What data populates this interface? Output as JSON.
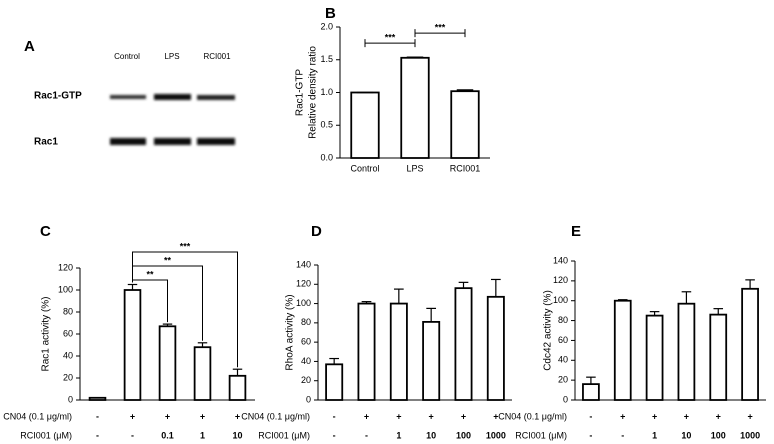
{
  "blot": {
    "label": "A",
    "lanes": [
      "Control",
      "LPS",
      "RCI001"
    ],
    "rows": [
      "Rac1-GTP",
      "Rac1"
    ]
  },
  "chart_data": [
    {
      "type": "bar",
      "label": "B",
      "ylabel": [
        "Rac1-GTP",
        "Relative density ratio"
      ],
      "categories": [
        "Control",
        "LPS",
        "RCI001"
      ],
      "values": [
        1.0,
        1.53,
        1.02
      ],
      "errors": [
        0,
        0.01,
        0.02
      ],
      "color": "#000000",
      "ylim": [
        0,
        2.0
      ],
      "yticks": [
        {
          "value": 0,
          "label": "0.0"
        },
        {
          "value": 0.5,
          "label": "0.5"
        },
        {
          "value": 1.0,
          "label": "1.0"
        },
        {
          "value": 1.5,
          "label": "1.5"
        },
        {
          "value": 2.0,
          "label": "2.0"
        }
      ],
      "bracket_style": "cap",
      "annotations": [
        {
          "from": 0,
          "to": 1,
          "text": "***"
        },
        {
          "from": 1,
          "to": 2,
          "text": "***"
        }
      ]
    },
    {
      "type": "bar",
      "label": "C",
      "ylabel": [
        "Rac1 activity (%)"
      ],
      "values": [
        2,
        100,
        67,
        48,
        22
      ],
      "errors": [
        0,
        5,
        2,
        4,
        6
      ],
      "color": "#000000",
      "ylim": [
        0,
        120
      ],
      "yticks": [
        0,
        20,
        40,
        60,
        80,
        100,
        120
      ],
      "condition_rows": [
        {
          "name": "CN04 (0.1 μg/ml)",
          "cells": [
            "-",
            "+",
            "+",
            "+",
            "+"
          ]
        },
        {
          "name": "RCI001 (μM)",
          "cells": [
            "-",
            "-",
            "0.1",
            "1",
            "10"
          ]
        }
      ],
      "bracket_style": "drop",
      "annotations": [
        {
          "from": 1,
          "to": 2,
          "text": "**"
        },
        {
          "from": 1,
          "to": 3,
          "text": "**"
        },
        {
          "from": 1,
          "to": 4,
          "text": "***"
        }
      ]
    },
    {
      "type": "bar",
      "label": "D",
      "ylabel": [
        "RhoA activity (%)"
      ],
      "values": [
        37,
        100,
        100,
        81,
        116,
        107
      ],
      "errors": [
        6,
        2,
        15,
        14,
        6,
        18
      ],
      "color": "#000000",
      "ylim": [
        0,
        140
      ],
      "yticks": [
        0,
        20,
        40,
        60,
        80,
        100,
        120,
        140
      ],
      "condition_rows": [
        {
          "name": "CN04 (0.1 μg/ml)",
          "cells": [
            "-",
            "+",
            "+",
            "+",
            "+",
            "+"
          ]
        },
        {
          "name": "RCI001 (μM)",
          "cells": [
            "-",
            "-",
            "1",
            "10",
            "100",
            "1000"
          ]
        }
      ]
    },
    {
      "type": "bar",
      "label": "E",
      "ylabel": [
        "Cdc42 activity (%)"
      ],
      "values": [
        16,
        100,
        85,
        97,
        86,
        112
      ],
      "errors": [
        7,
        1,
        4,
        12,
        6,
        9
      ],
      "color": "#000000",
      "ylim": [
        0,
        140
      ],
      "yticks": [
        0,
        20,
        40,
        60,
        80,
        100,
        120,
        140
      ],
      "condition_rows": [
        {
          "name": "CN04 (0.1 μg/ml)",
          "cells": [
            "-",
            "+",
            "+",
            "+",
            "+",
            "+"
          ]
        },
        {
          "name": "RCI001 (μM)",
          "cells": [
            "-",
            "-",
            "1",
            "10",
            "100",
            "1000"
          ]
        }
      ]
    }
  ]
}
